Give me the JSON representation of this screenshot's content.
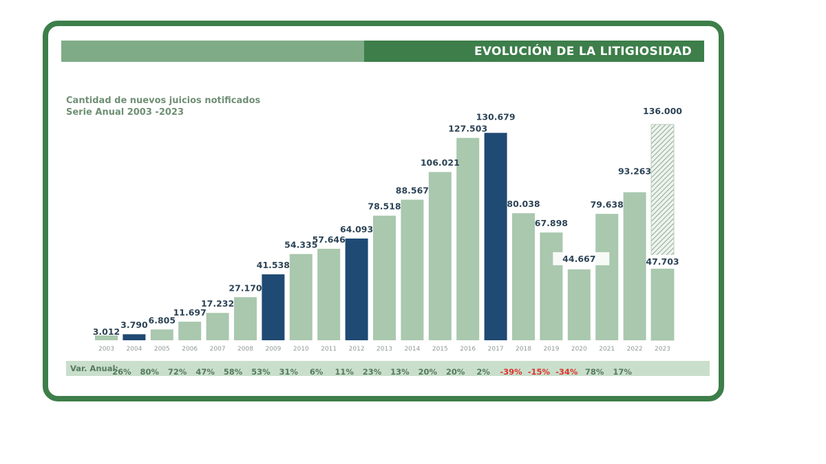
{
  "title": "EVOLUCIÓN DE LA LITIGIOSIDAD",
  "subtitle_line1": "Cantidad de nuevos juicios notificados",
  "subtitle_line2": "Serie Anual 2003 -2023",
  "var_label": "Var. Anual:",
  "colors": {
    "frame": "#3d7e4a",
    "bar_normal": "#a9c8ae",
    "bar_highlight": "#1f4a73",
    "label": "#2d4456",
    "negative": "#e0322c",
    "positive": "#577a5e"
  },
  "chart_data": {
    "type": "bar",
    "categories": [
      "2003",
      "2004",
      "2005",
      "2006",
      "2007",
      "2008",
      "2009",
      "2010",
      "2011",
      "2012",
      "2013",
      "2014",
      "2015",
      "2016",
      "2017",
      "2018",
      "2019",
      "2020",
      "2021",
      "2022",
      "2023"
    ],
    "values": [
      3012,
      3790,
      6805,
      11697,
      17232,
      27170,
      41538,
      54335,
      57646,
      64093,
      78518,
      88567,
      106021,
      127503,
      130679,
      80038,
      67898,
      44667,
      79638,
      93263,
      136000
    ],
    "value_labels": [
      "3.012",
      "3.790",
      "6.805",
      "11.697",
      "17.232",
      "27.170",
      "41.538",
      "54.335",
      "57.646",
      "64.093",
      "78.518",
      "88.567",
      "106.021",
      "127.503",
      "130.679",
      "80.038",
      "67.898",
      "44.667",
      "79.638",
      "93.263",
      "136.000"
    ],
    "highlight": [
      "2004",
      "2009",
      "2012",
      "2017"
    ],
    "hatched": [
      "2023"
    ],
    "partial_2023": {
      "value": 47703,
      "label": "47.703"
    },
    "annual_variation": [
      {
        "year": "2004",
        "text": "26%"
      },
      {
        "year": "2005",
        "text": "80%"
      },
      {
        "year": "2006",
        "text": "72%"
      },
      {
        "year": "2007",
        "text": "47%"
      },
      {
        "year": "2008",
        "text": "58%"
      },
      {
        "year": "2009",
        "text": "53%"
      },
      {
        "year": "2010",
        "text": "31%"
      },
      {
        "year": "2011",
        "text": "6%"
      },
      {
        "year": "2012",
        "text": "11%"
      },
      {
        "year": "2013",
        "text": "23%"
      },
      {
        "year": "2014",
        "text": "13%"
      },
      {
        "year": "2015",
        "text": "20%"
      },
      {
        "year": "2016",
        "text": "20%"
      },
      {
        "year": "2017",
        "text": "2%"
      },
      {
        "year": "2018",
        "text": "-39%"
      },
      {
        "year": "2019",
        "text": "-15%"
      },
      {
        "year": "2020",
        "text": "-34%"
      },
      {
        "year": "2021",
        "text": "78%"
      },
      {
        "year": "2022",
        "text": "17%"
      }
    ],
    "ylim": [
      0,
      140000
    ],
    "grid": false,
    "legend": "none",
    "xlabel": "",
    "ylabel": ""
  }
}
